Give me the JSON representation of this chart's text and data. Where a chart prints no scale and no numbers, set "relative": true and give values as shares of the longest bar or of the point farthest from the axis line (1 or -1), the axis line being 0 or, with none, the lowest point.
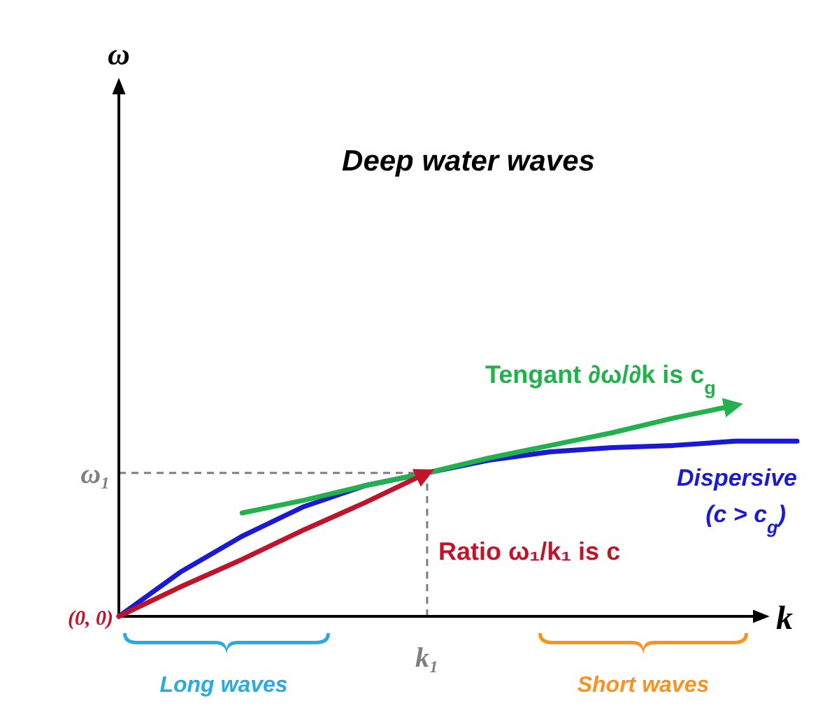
{
  "chart_data": {
    "type": "line",
    "title": "Deep water waves",
    "xlabel": "k",
    "relative": true,
    "marker": "none",
    "line_style": "solid",
    "categories": [
      null,
      null,
      null,
      null,
      null,
      null,
      null,
      null,
      null,
      null,
      null,
      null
    ],
    "series": [
      {
        "name": "Dispersive (c > c$_{g}$)",
        "color": "#1a1ad6",
        "values": [
          0,
          0.21,
          0.38,
          0.52,
          0.62,
          0.68,
          0.74,
          0.78,
          0.8,
          0.81,
          0.83,
          0.83
        ]
      },
      {
        "name": "Tengant ∂ω/∂k is c$_{g}$",
        "color": "#22b14c",
        "values": [
          null,
          null,
          0.49,
          0.55,
          0.62,
          0.68,
          0.75,
          0.81,
          0.87,
          0.94,
          1,
          null
        ]
      },
      {
        "name": "Ratio ω₁/k₁ is c",
        "color": "#c0142b",
        "values": [
          0,
          0.14,
          0.27,
          0.41,
          0.54,
          0.68,
          null,
          null,
          null,
          null,
          null,
          null
        ]
      }
    ],
    "ref_lines": [
      {
        "axis": "y",
        "value": 0.68,
        "label": "ω₁",
        "color": "#7f7f7f",
        "line_style": "dashed"
      }
    ],
    "annotations": [
      "(0, 0)",
      "Long waves",
      "Short waves",
      "k₁",
      "ω"
    ]
  }
}
